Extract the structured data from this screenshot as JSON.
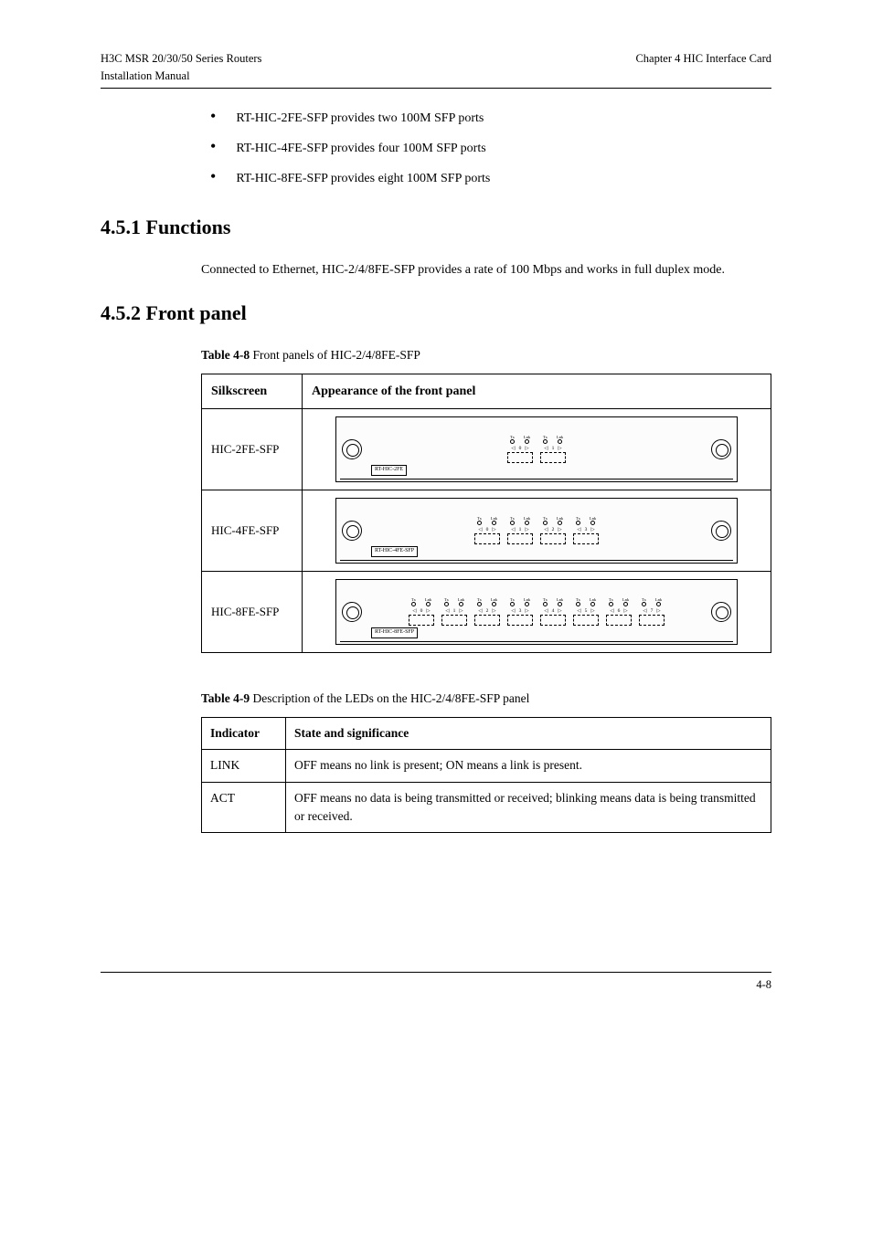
{
  "header": {
    "left_line1": "H3C MSR 20/30/50 Series Routers",
    "left_line2": "Installation Manual",
    "right": "Chapter 4 HIC Interface Card"
  },
  "bullets": [
    "RT-HIC-2FE-SFP provides two 100M SFP ports",
    "RT-HIC-4FE-SFP provides four 100M SFP ports",
    "RT-HIC-8FE-SFP provides eight 100M SFP ports"
  ],
  "sections": {
    "functions": {
      "number": "4.5.1",
      "title": "Functions",
      "paragraph": "Connected to Ethernet, HIC-2/4/8FE-SFP provides a rate of 100 Mbps and works in full duplex mode."
    },
    "frontpanel": {
      "number": "4.5.2",
      "title": "Front panel"
    }
  },
  "table_caption": {
    "bold": "Table 4-8",
    "text": " Front panels of HIC-2/4/8FE-SFP"
  },
  "panel_table": {
    "headers": [
      "Silkscreen",
      "Appearance of the front panel"
    ],
    "rows": [
      {
        "silkscreen": "HIC-2FE-SFP",
        "ports": 2,
        "label": "RT-HIC-2FE"
      },
      {
        "silkscreen": "HIC-4FE-SFP",
        "ports": 4,
        "label": "RT-HIC-4FE-SFP"
      },
      {
        "silkscreen": "HIC-8FE-SFP",
        "ports": 8,
        "label": "RT-HIC-8FE-SFP"
      }
    ]
  },
  "indicator_caption": {
    "bold": "Table 4-9",
    "text": " Description of the LEDs on the HIC-2/4/8FE-SFP panel"
  },
  "indicator_table": {
    "headers": [
      "Indicator",
      "State and significance"
    ],
    "rows": [
      {
        "indicator": "LINK",
        "state": "OFF means no link is present; ON means a link is present."
      },
      {
        "indicator": "ACT",
        "state": "OFF means no data is being transmitted or received; blinking means data is being transmitted or received."
      }
    ]
  },
  "footer": {
    "left": "",
    "right": "4-8"
  },
  "led_labels": {
    "top1": "Tx",
    "top2": "Lnk"
  }
}
